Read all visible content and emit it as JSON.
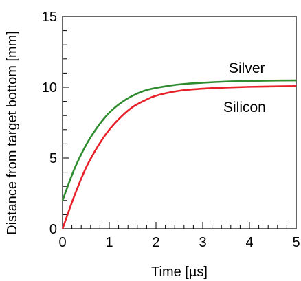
{
  "chart_data": {
    "type": "line",
    "title": "",
    "xlabel": "Time [µs]",
    "ylabel": "Distance from target bottom [mm]",
    "xlim": [
      0,
      5
    ],
    "ylim": [
      0,
      15
    ],
    "x_ticks": [
      "0",
      "1",
      "2",
      "3",
      "4",
      "5"
    ],
    "y_ticks": [
      "0",
      "5",
      "10",
      "15"
    ],
    "grid": false,
    "legend": "none",
    "series": [
      {
        "name": "Silver",
        "color": "#2e8b2e",
        "x": [
          0,
          0.25,
          0.5,
          0.75,
          1,
          1.25,
          1.5,
          1.75,
          2,
          2.5,
          3,
          3.5,
          4,
          4.5,
          5
        ],
        "y": [
          2.0,
          4.2,
          5.9,
          7.2,
          8.2,
          8.9,
          9.4,
          9.75,
          9.95,
          10.2,
          10.32,
          10.4,
          10.44,
          10.47,
          10.48
        ]
      },
      {
        "name": "Silicon",
        "color": "#e8202a",
        "x": [
          0,
          0.25,
          0.5,
          0.75,
          1,
          1.25,
          1.5,
          1.75,
          2,
          2.5,
          3,
          3.5,
          4,
          4.5,
          5
        ],
        "y": [
          0.0,
          2.3,
          4.3,
          5.8,
          7.0,
          7.9,
          8.6,
          9.05,
          9.4,
          9.75,
          9.9,
          9.98,
          10.03,
          10.06,
          10.08
        ]
      }
    ]
  }
}
